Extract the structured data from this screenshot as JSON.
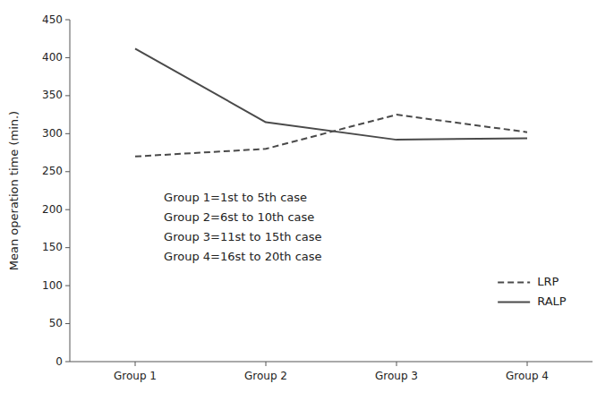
{
  "chart_data": {
    "type": "line",
    "categories": [
      "Group 1",
      "Group 2",
      "Group 3",
      "Group 4"
    ],
    "series": [
      {
        "name": "LRP",
        "color": "#4a4a4a",
        "line_style": "dashed",
        "values": [
          270,
          280,
          325,
          302
        ]
      },
      {
        "name": "RALP",
        "color": "#4a4a4a",
        "line_style": "solid",
        "values": [
          412,
          315,
          292,
          294
        ]
      }
    ],
    "ylabel": "Mean operation time (min.)",
    "ylim": [
      0,
      450
    ],
    "yticks": [
      0,
      50,
      100,
      150,
      200,
      250,
      300,
      350,
      400,
      450
    ],
    "annotations": [
      "Group 1=1st to 5th case",
      "Group 2=6st to 10th case",
      "Group 3=11st to 15th case",
      "Group 4=16st to 20th case"
    ],
    "legend": "lower right",
    "grid": false
  }
}
